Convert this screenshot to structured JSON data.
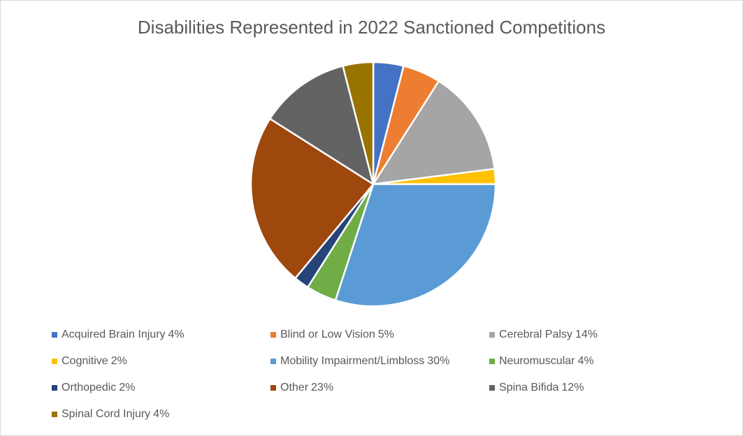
{
  "chart_data": {
    "type": "pie",
    "title": "Disabilities Represented in 2022 Sanctioned Competitions",
    "slices": [
      {
        "name": "Acquired Brain Injury",
        "value": 4,
        "pct_label": "4%",
        "color": "#4472c4"
      },
      {
        "name": "Blind or Low Vision",
        "value": 5,
        "pct_label": "5%",
        "color": "#ed7d31"
      },
      {
        "name": "Cerebral Palsy",
        "value": 14,
        "pct_label": "14%",
        "color": "#a5a5a5"
      },
      {
        "name": "Cognitive",
        "value": 2,
        "pct_label": "2%",
        "color": "#ffc000"
      },
      {
        "name": "Mobility Impairment/Limbloss",
        "value": 30,
        "pct_label": "30%",
        "color": "#5b9bd5"
      },
      {
        "name": "Neuromuscular",
        "value": 4,
        "pct_label": "4%",
        "color": "#70ad47"
      },
      {
        "name": "Orthopedic",
        "value": 2,
        "pct_label": "2%",
        "color": "#264478"
      },
      {
        "name": "Other",
        "value": 23,
        "pct_label": "23%",
        "color": "#9e480e"
      },
      {
        "name": "Spina Bifida",
        "value": 12,
        "pct_label": "12%",
        "color": "#636363"
      },
      {
        "name": "Spinal Cord Injury",
        "value": 4,
        "pct_label": "4%",
        "color": "#997300"
      }
    ],
    "legend_position": "bottom"
  }
}
